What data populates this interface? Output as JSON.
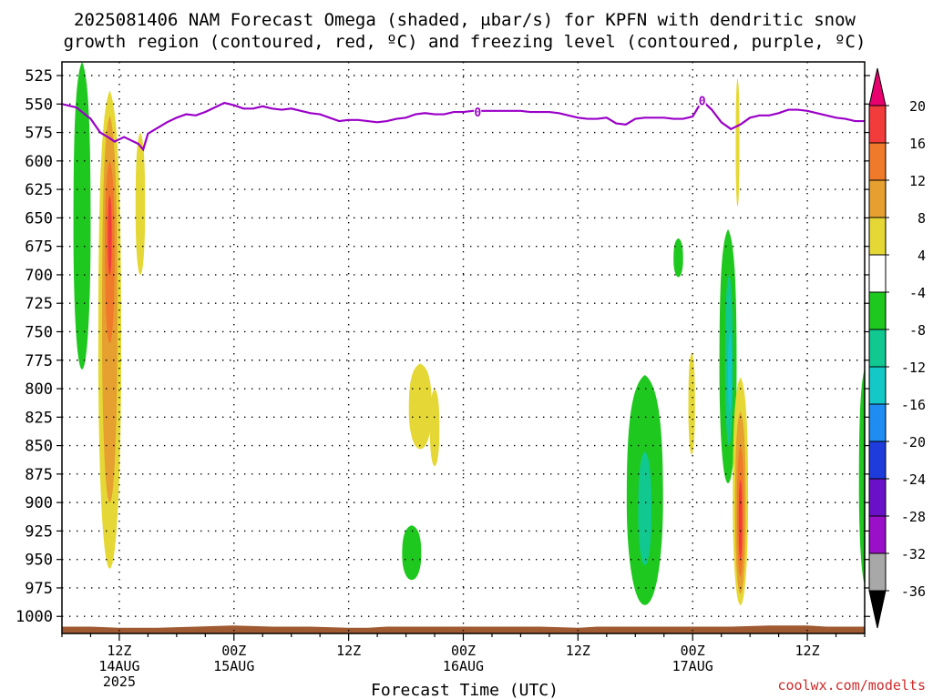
{
  "title": {
    "line1": "2025081406 NAM Forecast Omega (shaded, μbar/s) for KPFN with dendritic snow",
    "line2": "growth region (contoured, red, ºC) and freezing level (contoured, purple, ºC)"
  },
  "credit": "coolwx.com/modelts",
  "chart_data": {
    "type": "heatmap",
    "xlabel": "Forecast Time (UTC)",
    "ylabel": "",
    "x_ticks": [
      {
        "hours": 6,
        "label": "12Z",
        "sub": "14AUG",
        "sub2": "2025"
      },
      {
        "hours": 18,
        "label": "00Z",
        "sub": "15AUG",
        "sub2": ""
      },
      {
        "hours": 30,
        "label": "12Z",
        "sub": "",
        "sub2": ""
      },
      {
        "hours": 42,
        "label": "00Z",
        "sub": "16AUG",
        "sub2": ""
      },
      {
        "hours": 54,
        "label": "12Z",
        "sub": "",
        "sub2": ""
      },
      {
        "hours": 66,
        "label": "00Z",
        "sub": "17AUG",
        "sub2": ""
      },
      {
        "hours": 78,
        "label": "12Z",
        "sub": "",
        "sub2": ""
      }
    ],
    "xlim": [
      0,
      84
    ],
    "y_ticks": [
      525,
      550,
      575,
      600,
      625,
      650,
      675,
      700,
      725,
      750,
      775,
      800,
      825,
      850,
      875,
      900,
      925,
      950,
      975,
      1000
    ],
    "ylim": [
      513,
      1015
    ],
    "grid": true,
    "colorbar": {
      "labels": [
        "20",
        "16",
        "12",
        "8",
        "4",
        "-4",
        "-8",
        "-12",
        "-16",
        "-20",
        "-24",
        "-28",
        "-32",
        "-36"
      ],
      "colors": [
        "#e8006e",
        "#f23b3b",
        "#ef7a2a",
        "#e5a030",
        "#e5d836",
        "#ffffff",
        "#1ec81e",
        "#10c890",
        "#14c8c8",
        "#1e8cf0",
        "#1e3cdc",
        "#6a10c8",
        "#9a10c8",
        "#a8a8a8",
        "#000000"
      ]
    },
    "freezing_level": {
      "color": "#9a00c8",
      "label": "0",
      "points": [
        [
          0,
          550
        ],
        [
          1.5,
          553
        ],
        [
          3,
          563
        ],
        [
          4,
          575
        ],
        [
          5,
          580
        ],
        [
          5.5,
          583
        ],
        [
          6,
          581
        ],
        [
          6.5,
          579
        ],
        [
          7,
          581
        ],
        [
          8,
          585
        ],
        [
          8.5,
          590
        ],
        [
          9,
          576
        ],
        [
          10,
          571
        ],
        [
          11,
          566
        ],
        [
          12,
          562
        ],
        [
          13,
          559
        ],
        [
          14,
          560
        ],
        [
          15,
          557
        ],
        [
          16,
          553
        ],
        [
          17,
          549
        ],
        [
          18,
          551
        ],
        [
          19,
          554
        ],
        [
          20,
          554
        ],
        [
          21,
          552
        ],
        [
          22,
          554
        ],
        [
          23,
          555
        ],
        [
          24,
          554
        ],
        [
          25,
          556
        ],
        [
          26,
          558
        ],
        [
          27,
          559
        ],
        [
          28,
          562
        ],
        [
          29,
          565
        ],
        [
          30,
          564
        ],
        [
          31,
          564
        ],
        [
          32,
          565
        ],
        [
          33,
          566
        ],
        [
          34,
          565
        ],
        [
          35,
          563
        ],
        [
          36,
          562
        ],
        [
          37,
          559
        ],
        [
          38,
          558
        ],
        [
          39,
          559
        ],
        [
          40,
          559
        ],
        [
          41,
          557
        ],
        [
          42,
          557
        ],
        [
          43,
          556
        ],
        [
          44,
          556
        ],
        [
          45,
          556
        ],
        [
          46,
          556
        ],
        [
          47,
          556
        ],
        [
          48,
          556
        ],
        [
          49,
          557
        ],
        [
          50,
          557
        ],
        [
          51,
          557
        ],
        [
          52,
          558
        ],
        [
          53,
          560
        ],
        [
          54,
          562
        ],
        [
          55,
          563
        ],
        [
          56,
          563
        ],
        [
          57,
          562
        ],
        [
          58,
          567
        ],
        [
          59,
          568
        ],
        [
          60,
          563
        ],
        [
          61,
          562
        ],
        [
          62,
          562
        ],
        [
          63,
          562
        ],
        [
          64,
          563
        ],
        [
          65,
          563
        ],
        [
          66,
          561
        ],
        [
          67,
          547
        ],
        [
          68,
          555
        ],
        [
          69,
          566
        ],
        [
          70,
          572
        ],
        [
          71,
          568
        ],
        [
          72,
          562
        ],
        [
          73,
          560
        ],
        [
          74,
          560
        ],
        [
          75,
          558
        ],
        [
          76,
          555
        ],
        [
          77,
          555
        ],
        [
          78,
          556
        ],
        [
          79,
          558
        ],
        [
          80,
          560
        ],
        [
          81,
          562
        ],
        [
          82,
          563
        ],
        [
          83,
          565
        ],
        [
          84,
          565
        ]
      ],
      "label_positions": [
        [
          43.5,
          557
        ],
        [
          67,
          547
        ]
      ]
    },
    "omega_regions": [
      {
        "value": -6,
        "t": 2.1,
        "dt": 0.9,
        "p_top": 513,
        "p_bot": 783,
        "peak_t": 2.3
      },
      {
        "value": 6,
        "t": 5.0,
        "dt": 1.2,
        "p_top": 538,
        "p_bot": 958,
        "peak_t": 5.0
      },
      {
        "value": 10,
        "t": 5.0,
        "dt": 0.8,
        "p_top": 560,
        "p_bot": 900,
        "peak_t": 5.0
      },
      {
        "value": 14,
        "t": 5.0,
        "dt": 0.5,
        "p_top": 600,
        "p_bot": 760,
        "peak_t": 5.0
      },
      {
        "value": 18,
        "t": 5.0,
        "dt": 0.2,
        "p_top": 630,
        "p_bot": 700,
        "peak_t": 5.0
      },
      {
        "value": 6,
        "t": 8.2,
        "dt": 0.5,
        "p_top": 575,
        "p_bot": 700,
        "peak_t": 8.2
      },
      {
        "value": 6,
        "t": 37.5,
        "dt": 1.2,
        "p_top": 778,
        "p_bot": 853,
        "peak_t": 37.5
      },
      {
        "value": 6,
        "t": 39.0,
        "dt": 0.5,
        "p_top": 800,
        "p_bot": 868,
        "peak_t": 39.0
      },
      {
        "value": -6,
        "t": 36.6,
        "dt": 1.0,
        "p_top": 920,
        "p_bot": 968,
        "peak_t": 36.6
      },
      {
        "value": -6,
        "t": 61.0,
        "dt": 1.9,
        "p_top": 788,
        "p_bot": 990,
        "peak_t": 61.0
      },
      {
        "value": -10,
        "t": 61.0,
        "dt": 0.7,
        "p_top": 855,
        "p_bot": 955,
        "peak_t": 61.0
      },
      {
        "value": -6,
        "t": 64.5,
        "dt": 0.5,
        "p_top": 668,
        "p_bot": 702,
        "peak_t": 64.5
      },
      {
        "value": 6,
        "t": 65.9,
        "dt": 0.35,
        "p_top": 768,
        "p_bot": 858,
        "peak_t": 65.9
      },
      {
        "value": -6,
        "t": 69.7,
        "dt": 0.9,
        "p_top": 660,
        "p_bot": 883,
        "peak_t": 69.7
      },
      {
        "value": -10,
        "t": 69.8,
        "dt": 0.4,
        "p_top": 700,
        "p_bot": 850,
        "peak_t": 69.8
      },
      {
        "value": -14,
        "t": 69.9,
        "dt": 0.2,
        "p_top": 750,
        "p_bot": 820,
        "peak_t": 69.9
      },
      {
        "value": 6,
        "t": 70.7,
        "dt": 0.2,
        "p_top": 527,
        "p_bot": 640,
        "peak_t": 70.7
      },
      {
        "value": 6,
        "t": 71.0,
        "dt": 0.8,
        "p_top": 790,
        "p_bot": 990,
        "peak_t": 71.0
      },
      {
        "value": 10,
        "t": 71.0,
        "dt": 0.55,
        "p_top": 820,
        "p_bot": 980,
        "peak_t": 71.0
      },
      {
        "value": 14,
        "t": 71.0,
        "dt": 0.35,
        "p_top": 850,
        "p_bot": 965,
        "peak_t": 71.0
      },
      {
        "value": 18,
        "t": 71.0,
        "dt": 0.18,
        "p_top": 880,
        "p_bot": 950,
        "peak_t": 71.0
      },
      {
        "value": -6,
        "t": 84.2,
        "dt": 0.8,
        "p_top": 778,
        "p_bot": 975,
        "peak_t": 84.2
      }
    ],
    "terrain": {
      "color": "#a05a32",
      "surface": [
        [
          0,
          1009
        ],
        [
          3,
          1009
        ],
        [
          6,
          1010
        ],
        [
          10,
          1010
        ],
        [
          14,
          1009
        ],
        [
          18,
          1008
        ],
        [
          22,
          1009
        ],
        [
          26,
          1009
        ],
        [
          30,
          1010
        ],
        [
          32,
          1010
        ],
        [
          34,
          1009
        ],
        [
          38,
          1009
        ],
        [
          42,
          1009
        ],
        [
          46,
          1009
        ],
        [
          50,
          1009
        ],
        [
          54,
          1010
        ],
        [
          56,
          1009
        ],
        [
          60,
          1009
        ],
        [
          64,
          1009
        ],
        [
          68,
          1009
        ],
        [
          70,
          1009
        ],
        [
          74,
          1008
        ],
        [
          78,
          1008
        ],
        [
          80,
          1009
        ],
        [
          84,
          1009
        ]
      ]
    }
  }
}
